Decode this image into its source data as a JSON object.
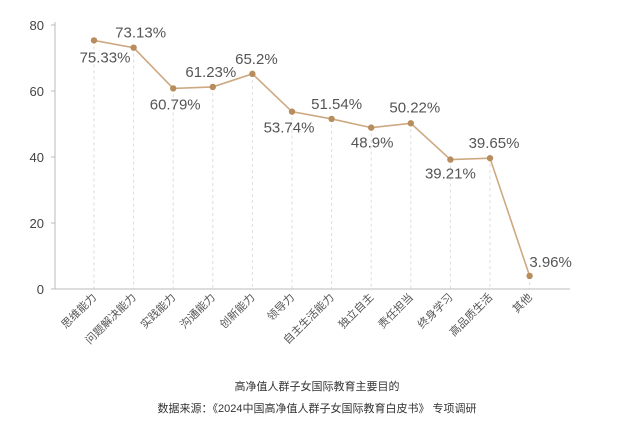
{
  "chart_data": {
    "type": "line",
    "categories": [
      "思维能力",
      "问题解决能力",
      "实践能力",
      "沟通能力",
      "创新能力",
      "领导力",
      "自主生活能力",
      "独立自主",
      "责任担当",
      "终身学习",
      "高品质生活",
      "其他"
    ],
    "series": [
      {
        "values": [
          75.33,
          73.13,
          60.79,
          61.23,
          65.2,
          53.74,
          51.54,
          48.9,
          50.22,
          39.21,
          39.65,
          3.96
        ]
      }
    ],
    "data_labels": [
      "75.33%",
      "73.13%",
      "60.79%",
      "61.23%",
      "65.2%",
      "53.74%",
      "51.54%",
      "48.9%",
      "50.22%",
      "39.21%",
      "39.65%",
      "3.96%"
    ],
    "ylim": [
      0,
      80
    ],
    "yticks": [
      "0",
      "20",
      "40",
      "60",
      "80"
    ],
    "title": "高净值人群子女国际教育主要目的",
    "source": "数据来源：《2024中国高净值人群子女国际教育白皮书》 专项调研",
    "xlabel": "",
    "ylabel": "",
    "grid": false,
    "legend": "none",
    "colors": {
      "line": "#cda982",
      "marker": "#b78d5e",
      "guide": "#dddddd",
      "axis": "#bbbbbb",
      "label_text": "#555555",
      "tick_text": "#444444"
    }
  }
}
